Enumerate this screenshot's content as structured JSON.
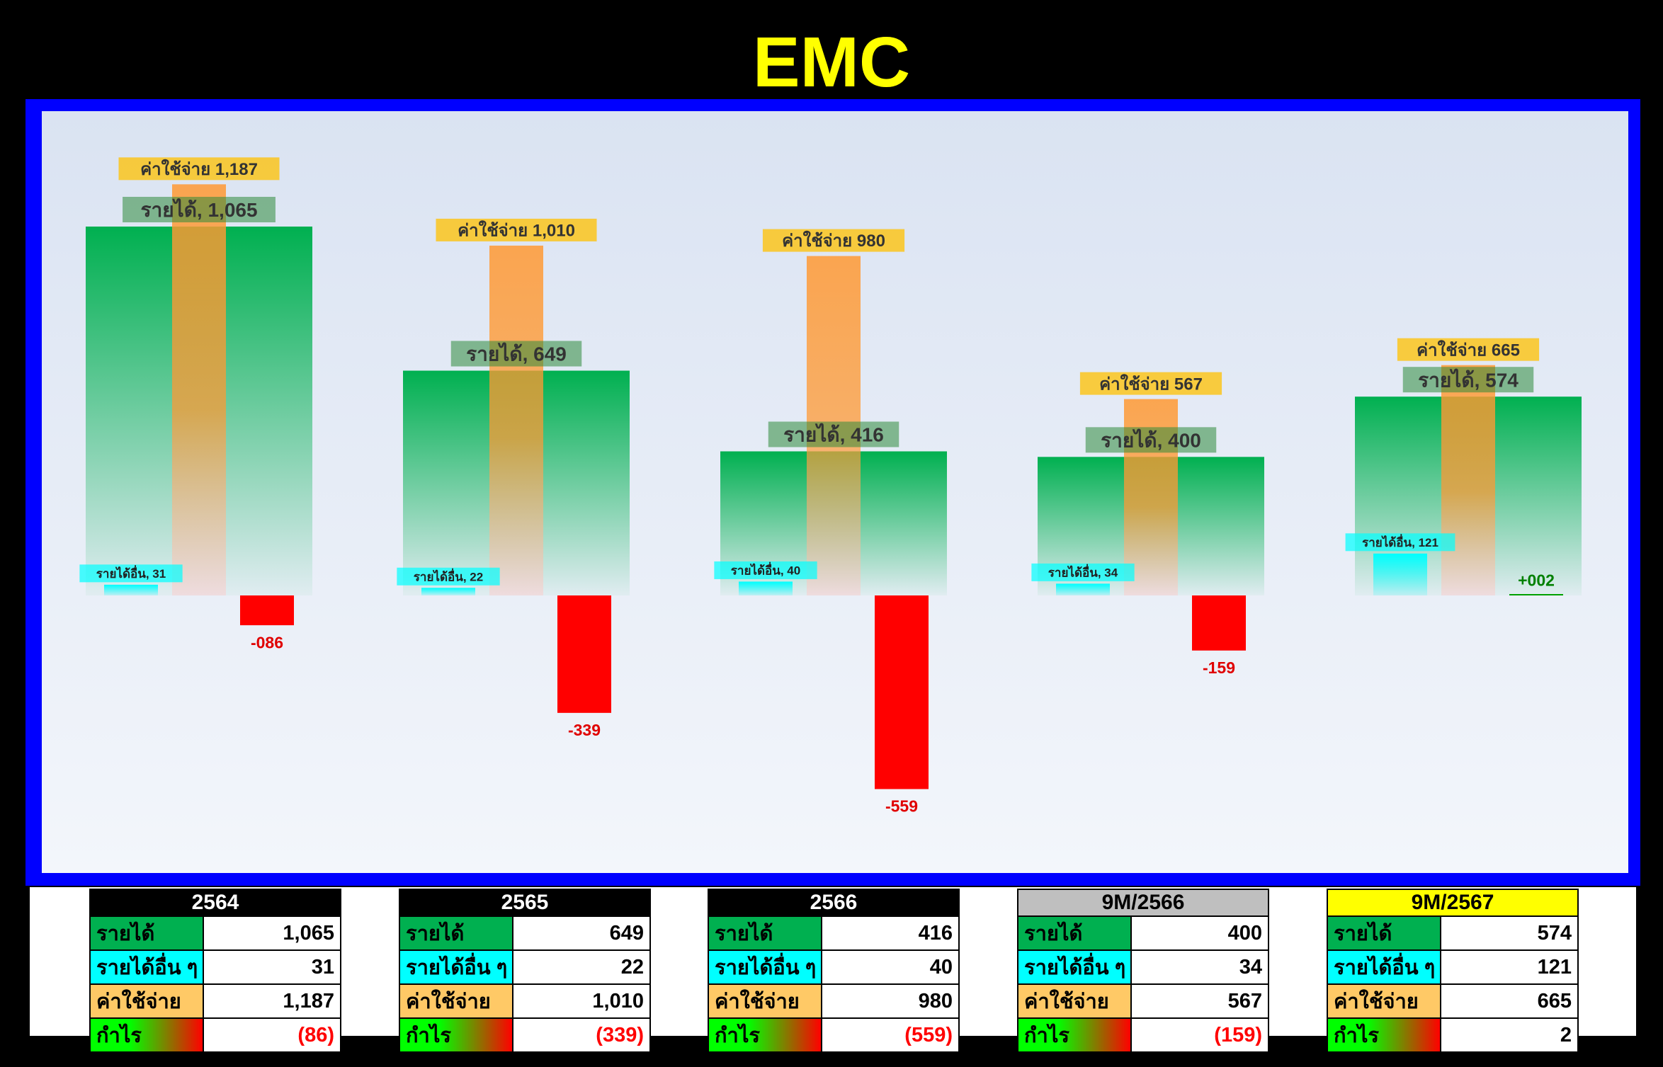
{
  "title": "EMC",
  "colors": {
    "revenue": "#00b050",
    "other_income": "#00ffff",
    "expense": "#ff9933",
    "profit_negative": "#ff0000",
    "profit_positive": "#00a000",
    "title": "#ffff00",
    "frame": "#0000ff"
  },
  "chart_data": {
    "type": "bar",
    "categories": [
      "2564",
      "2565",
      "2566",
      "9M/2566",
      "9M/2567"
    ],
    "series": [
      {
        "key": "revenue",
        "values": [
          1065,
          649,
          416,
          400,
          574
        ],
        "labels": [
          "รายได้, 1,065",
          "รายได้, 649",
          "รายได้, 416",
          "รายได้, 400",
          "รายได้, 574"
        ]
      },
      {
        "key": "other_income",
        "values": [
          31,
          22,
          40,
          34,
          121
        ],
        "labels": [
          "รายได้อื่น, 31",
          "รายได้อื่น, 22",
          "รายได้อื่น, 40",
          "รายได้อื่น, 34",
          "รายได้อื่น, 121"
        ]
      },
      {
        "key": "expense",
        "values": [
          1187,
          1010,
          980,
          567,
          665
        ],
        "labels": [
          "ค่าใช้จ่าย 1,187",
          "ค่าใช้จ่าย 1,010",
          "ค่าใช้จ่าย 980",
          "ค่าใช้จ่าย 567",
          "ค่าใช้จ่าย 665"
        ]
      },
      {
        "key": "profit",
        "values": [
          -86,
          -339,
          -559,
          -159,
          2
        ],
        "labels": [
          "-086",
          "-339",
          "-559",
          "-159",
          "+002"
        ]
      }
    ],
    "ylim": [
      -650,
      1300
    ],
    "grid": false,
    "legend": "none"
  },
  "tables": [
    {
      "header": "2564",
      "header_bg": "#000000",
      "header_fg": "#ffffff",
      "rows": [
        {
          "label": "รายได้",
          "value": "1,065",
          "neg": false
        },
        {
          "label": "รายได้อื่น ๆ",
          "value": "31",
          "neg": false
        },
        {
          "label": "ค่าใช้จ่าย",
          "value": "1,187",
          "neg": false
        },
        {
          "label": "กำไร",
          "value": "(86)",
          "neg": true
        }
      ]
    },
    {
      "header": "2565",
      "header_bg": "#000000",
      "header_fg": "#ffffff",
      "rows": [
        {
          "label": "รายได้",
          "value": "649",
          "neg": false
        },
        {
          "label": "รายได้อื่น ๆ",
          "value": "22",
          "neg": false
        },
        {
          "label": "ค่าใช้จ่าย",
          "value": "1,010",
          "neg": false
        },
        {
          "label": "กำไร",
          "value": "(339)",
          "neg": true
        }
      ]
    },
    {
      "header": "2566",
      "header_bg": "#000000",
      "header_fg": "#ffffff",
      "rows": [
        {
          "label": "รายได้",
          "value": "416",
          "neg": false
        },
        {
          "label": "รายได้อื่น ๆ",
          "value": "40",
          "neg": false
        },
        {
          "label": "ค่าใช้จ่าย",
          "value": "980",
          "neg": false
        },
        {
          "label": "กำไร",
          "value": "(559)",
          "neg": true
        }
      ]
    },
    {
      "header": "9M/2566",
      "header_bg": "#bfbfbf",
      "header_fg": "#000000",
      "rows": [
        {
          "label": "รายได้",
          "value": "400",
          "neg": false
        },
        {
          "label": "รายได้อื่น ๆ",
          "value": "34",
          "neg": false
        },
        {
          "label": "ค่าใช้จ่าย",
          "value": "567",
          "neg": false
        },
        {
          "label": "กำไร",
          "value": "(159)",
          "neg": true
        }
      ]
    },
    {
      "header": "9M/2567",
      "header_bg": "#ffff00",
      "header_fg": "#000000",
      "rows": [
        {
          "label": "รายได้",
          "value": "574",
          "neg": false
        },
        {
          "label": "รายได้อื่น ๆ",
          "value": "121",
          "neg": false
        },
        {
          "label": "ค่าใช้จ่าย",
          "value": "665",
          "neg": false
        },
        {
          "label": "กำไร",
          "value": "2",
          "neg": false
        }
      ]
    }
  ]
}
